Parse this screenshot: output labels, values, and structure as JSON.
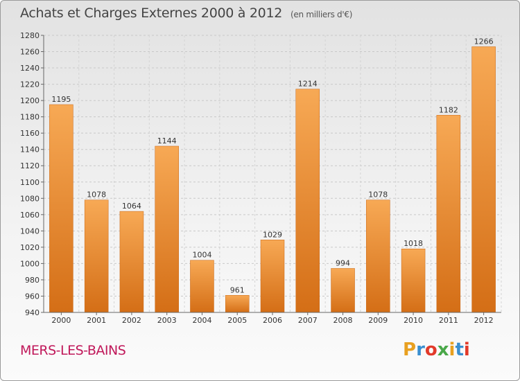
{
  "header": {
    "title": "Achats et Charges Externes 2000 à 2012",
    "subtitle": "(en milliers d'€)"
  },
  "footer": {
    "commune": "MERS-LES-BAINS",
    "logo_letters": [
      "P",
      "r",
      "o",
      "x",
      "i",
      "t",
      "i"
    ],
    "logo_colors": [
      "#e8a020",
      "#3a8fd0",
      "#e23a2a",
      "#4aa84a",
      "#e8a020",
      "#3a8fd0",
      "#e23a2a"
    ]
  },
  "chart_data": {
    "type": "bar",
    "title": "Achats et Charges Externes 2000 à 2012",
    "categories": [
      "2000",
      "2001",
      "2002",
      "2003",
      "2004",
      "2005",
      "2006",
      "2007",
      "2008",
      "2009",
      "2010",
      "2011",
      "2012"
    ],
    "values": [
      1195,
      1078,
      1064,
      1144,
      1004,
      961,
      1029,
      1214,
      994,
      1078,
      1018,
      1182,
      1266
    ],
    "ylim": [
      940,
      1280
    ],
    "yticks": [
      940,
      960,
      980,
      1000,
      1020,
      1040,
      1060,
      1080,
      1100,
      1120,
      1140,
      1160,
      1180,
      1200,
      1220,
      1240,
      1260,
      1280
    ],
    "xlabel": "",
    "ylabel": "",
    "grid": true,
    "bar_color": "#f0922e",
    "bar_color_dark": "#d9701a"
  }
}
